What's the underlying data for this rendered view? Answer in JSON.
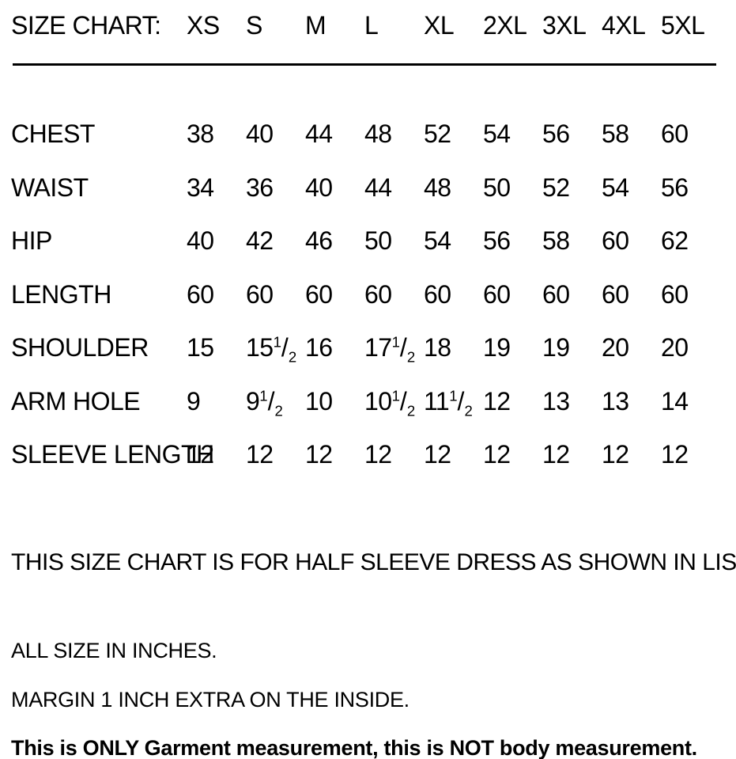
{
  "document": {
    "title_label": "SIZE CHART:",
    "sizes": [
      "XS",
      "S",
      "M",
      "L",
      "XL",
      "2XL",
      "3XL",
      "4XL",
      "5XL"
    ],
    "rows": [
      {
        "label": "CHEST",
        "values": [
          "38",
          "40",
          "44",
          "48",
          "52",
          "54",
          "56",
          "58",
          "60"
        ]
      },
      {
        "label": "WAIST",
        "values": [
          "34",
          "36",
          "40",
          "44",
          "48",
          "50",
          "52",
          "54",
          "56"
        ]
      },
      {
        "label": "HIP",
        "values": [
          "40",
          "42",
          "46",
          "50",
          "54",
          "56",
          "58",
          "60",
          "62"
        ]
      },
      {
        "label": "LENGTH",
        "values": [
          "60",
          "60",
          "60",
          "60",
          "60",
          "60",
          "60",
          "60",
          "60"
        ]
      },
      {
        "label": "SHOULDER",
        "values": [
          "15",
          "15 1/2",
          "16",
          "17 1/2",
          "18",
          "19",
          "19",
          "20",
          "20"
        ]
      },
      {
        "label": "ARM HOLE",
        "values": [
          "9",
          "9 1/2",
          "10",
          "10 1/2",
          "11 1/2",
          "12",
          "13",
          "13",
          "14"
        ]
      },
      {
        "label": "SLEEVE LENGTH",
        "values": [
          "12",
          "12",
          "12",
          "12",
          "12",
          "12",
          "12",
          "12",
          "12"
        ]
      }
    ],
    "notes": {
      "heading": "THIS SIZE CHART IS FOR HALF SLEEVE DRESS AS SHOWN IN LISTING",
      "line1": "ALL SIZE IN INCHES.",
      "line2": "MARGIN 1 INCH EXTRA ON THE INSIDE.",
      "bold_line": "This is ONLY Garment measurement, this is NOT body measurement."
    },
    "colors": {
      "text": "#000000",
      "background": "#ffffff",
      "rule": "#000000"
    }
  },
  "chart_data": {
    "type": "table",
    "title": "SIZE CHART:",
    "columns": [
      "XS",
      "S",
      "M",
      "L",
      "XL",
      "2XL",
      "3XL",
      "4XL",
      "5XL"
    ],
    "row_labels": [
      "CHEST",
      "WAIST",
      "HIP",
      "LENGTH",
      "SHOULDER",
      "ARM HOLE",
      "SLEEVE LENGTH"
    ],
    "values": [
      [
        38,
        40,
        44,
        48,
        52,
        54,
        56,
        58,
        60
      ],
      [
        34,
        36,
        40,
        44,
        48,
        50,
        52,
        54,
        56
      ],
      [
        40,
        42,
        46,
        50,
        54,
        56,
        58,
        60,
        62
      ],
      [
        60,
        60,
        60,
        60,
        60,
        60,
        60,
        60,
        60
      ],
      [
        15,
        15.5,
        16,
        17.5,
        18,
        19,
        19,
        20,
        20
      ],
      [
        9,
        9.5,
        10,
        10.5,
        11.5,
        12,
        13,
        13,
        14
      ],
      [
        12,
        12,
        12,
        12,
        12,
        12,
        12,
        12,
        12
      ]
    ],
    "units": "inches"
  }
}
